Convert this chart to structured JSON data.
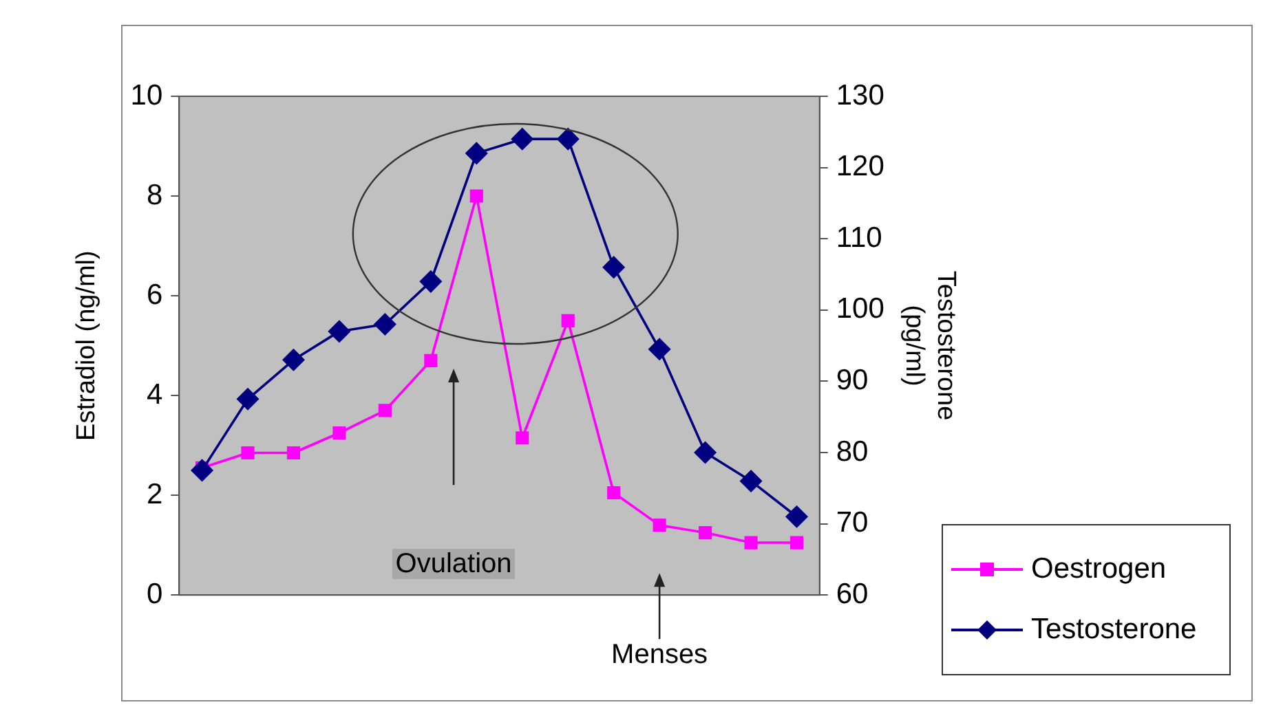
{
  "chart_data": {
    "type": "line",
    "ylabel": "Estradiol (ng/ml)",
    "y2label": "Testosterone (pg/ml)",
    "categories": [
      null,
      null,
      null,
      null,
      null,
      null,
      null,
      null,
      null,
      null,
      null,
      null,
      null,
      null
    ],
    "series": [
      {
        "name": "Oestrogen",
        "color": "#ff00ff",
        "marker": "square",
        "values": [
          2.55,
          2.85,
          2.85,
          3.25,
          3.7,
          4.7,
          8.0,
          3.15,
          5.5,
          2.05,
          1.4,
          1.25,
          1.05,
          1.05
        ]
      },
      {
        "name": "Testosterone",
        "color": "#000080",
        "marker": "diamond",
        "axis": "y2",
        "values": [
          77.5,
          87.5,
          93,
          97,
          98,
          104,
          122,
          124,
          124,
          106,
          94.5,
          80,
          76,
          71
        ]
      }
    ],
    "ylim": [
      0,
      10
    ],
    "yticks": [
      0,
      2,
      4,
      6,
      8,
      10
    ],
    "y2lim": [
      60,
      130
    ],
    "y2ticks": [
      60,
      70,
      80,
      90,
      100,
      110,
      120,
      130
    ],
    "grid": false,
    "legend": "bottom right",
    "line_style": "solid",
    "annotations": [
      "Ovulation",
      "Menses"
    ]
  }
}
